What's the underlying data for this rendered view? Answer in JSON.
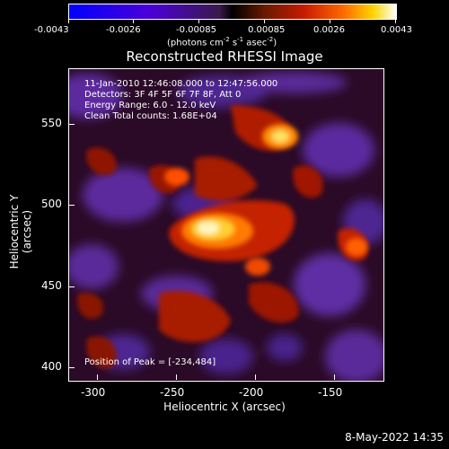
{
  "colorbar": {
    "ticks": [
      "-0.0043",
      "-0.0026",
      "-0.00085",
      "0.00085",
      "0.0026",
      "0.0043"
    ],
    "units_main": "(photons cm",
    "units_exp1": "-2",
    "units_mid1": " s",
    "units_exp2": "-1",
    "units_mid2": " asec",
    "units_exp3": "-2",
    "units_end": ")"
  },
  "title": "Reconstructed RHESSI Image",
  "annotations": {
    "time": "11-Jan-2010 12:46:08.000 to 12:47:56.000",
    "detectors": "Detectors: 3F 4F 5F 6F 7F 8F, Att 0",
    "energy": "Energy Range: 6.0 - 12.0 keV",
    "clean": "Clean     Total counts: 1.68E+04",
    "peak": "Position of Peak = [-234,484]"
  },
  "axes": {
    "xlabel": "Heliocentric X (arcsec)",
    "ylabel": "Heliocentric Y (arcsec)",
    "xticks": [
      "-300",
      "-250",
      "-200",
      "-150"
    ],
    "yticks": [
      "550",
      "500",
      "450",
      "400"
    ]
  },
  "footer": {
    "date": "8-May-2022 14:35"
  }
}
